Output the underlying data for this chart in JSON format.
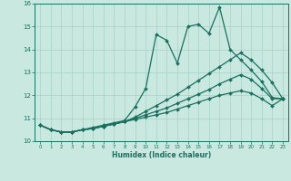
{
  "xlabel": "Humidex (Indice chaleur)",
  "bg_color": "#c8e8e0",
  "grid_color": "#a8d0c8",
  "line_color": "#1a7060",
  "xlim": [
    -0.5,
    23.5
  ],
  "ylim": [
    10,
    16
  ],
  "x_ticks": [
    0,
    1,
    2,
    3,
    4,
    5,
    6,
    7,
    8,
    9,
    10,
    11,
    12,
    13,
    14,
    15,
    16,
    17,
    18,
    19,
    20,
    21,
    22,
    23
  ],
  "y_ticks": [
    10,
    11,
    12,
    13,
    14,
    15,
    16
  ],
  "line1_x": [
    0,
    1,
    2,
    3,
    4,
    5,
    6,
    7,
    8,
    9,
    10,
    11,
    12,
    13,
    14,
    15,
    16,
    17,
    18,
    19,
    20,
    21,
    22,
    23
  ],
  "line1_y": [
    10.7,
    10.5,
    10.4,
    10.4,
    10.5,
    10.6,
    10.7,
    10.8,
    10.9,
    11.5,
    12.3,
    14.65,
    14.4,
    13.4,
    15.0,
    15.1,
    14.7,
    15.85,
    14.0,
    13.55,
    13.1,
    12.6,
    11.9,
    11.85
  ],
  "line2_x": [
    0,
    1,
    2,
    3,
    4,
    5,
    6,
    7,
    8,
    9,
    10,
    11,
    12,
    13,
    14,
    15,
    16,
    17,
    18,
    19,
    20,
    21,
    22,
    23
  ],
  "line2_y": [
    10.7,
    10.5,
    10.4,
    10.4,
    10.5,
    10.55,
    10.65,
    10.75,
    10.85,
    11.05,
    11.3,
    11.55,
    11.8,
    12.05,
    12.35,
    12.65,
    12.95,
    13.25,
    13.55,
    13.85,
    13.55,
    13.1,
    12.55,
    11.85
  ],
  "line3_x": [
    0,
    1,
    2,
    3,
    4,
    5,
    6,
    7,
    8,
    9,
    10,
    11,
    12,
    13,
    14,
    15,
    16,
    17,
    18,
    19,
    20,
    21,
    22,
    23
  ],
  "line3_y": [
    10.7,
    10.5,
    10.4,
    10.4,
    10.5,
    10.55,
    10.65,
    10.75,
    10.85,
    11.0,
    11.15,
    11.3,
    11.45,
    11.65,
    11.85,
    12.05,
    12.25,
    12.5,
    12.7,
    12.9,
    12.7,
    12.3,
    11.85,
    11.85
  ],
  "line4_x": [
    0,
    1,
    2,
    3,
    4,
    5,
    6,
    7,
    8,
    9,
    10,
    11,
    12,
    13,
    14,
    15,
    16,
    17,
    18,
    19,
    20,
    21,
    22,
    23
  ],
  "line4_y": [
    10.7,
    10.5,
    10.4,
    10.4,
    10.5,
    10.55,
    10.65,
    10.75,
    10.85,
    10.95,
    11.05,
    11.15,
    11.25,
    11.4,
    11.55,
    11.7,
    11.85,
    12.0,
    12.1,
    12.2,
    12.1,
    11.85,
    11.55,
    11.85
  ]
}
